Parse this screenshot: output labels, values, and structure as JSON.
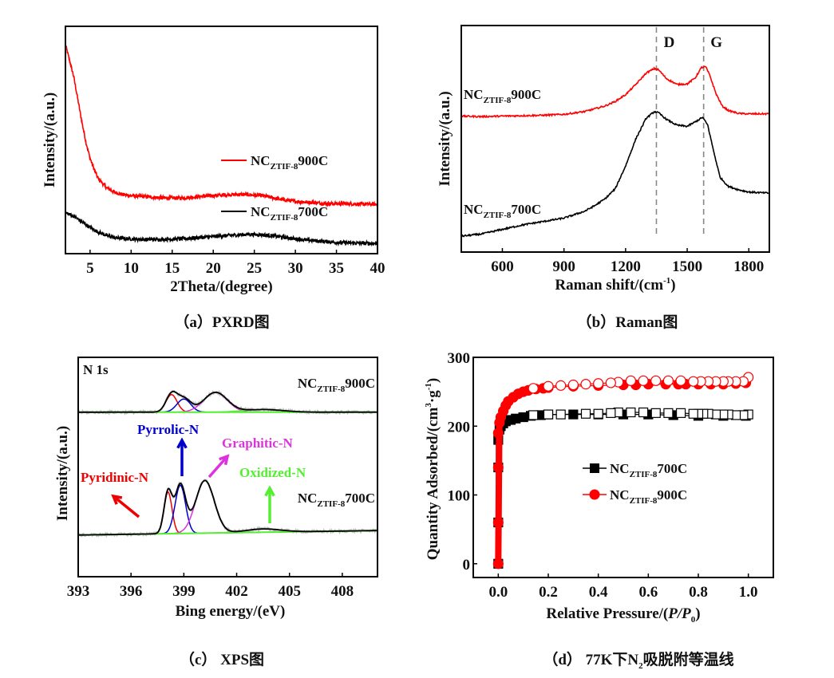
{
  "chart_data": [
    {
      "id": "a",
      "type": "line",
      "title": "",
      "caption": "（a）PXRD图",
      "xlabel": "2Theta/(degree)",
      "ylabel": "Intensity/(a.u.)",
      "xlim": [
        2,
        40
      ],
      "ylim": [
        0,
        100
      ],
      "xticks": [
        5,
        10,
        15,
        20,
        25,
        30,
        35,
        40
      ],
      "yticks_shown": false,
      "legend_position": "center-right",
      "series": [
        {
          "name": "NC_ZTIF-8 900C",
          "label_main": "NC",
          "label_sub": "ZTIF-8",
          "label_tail": "900C",
          "color": "#ff0000",
          "x": [
            2,
            2.5,
            3,
            3.5,
            4,
            4.5,
            5,
            5.5,
            6,
            7,
            8,
            9,
            10,
            12,
            14,
            16,
            18,
            20,
            22,
            24,
            26,
            28,
            30,
            32,
            34,
            36,
            38,
            40
          ],
          "y": [
            92,
            85,
            78,
            68,
            58,
            49,
            42,
            37,
            33,
            29,
            27,
            26,
            25.5,
            25,
            24.5,
            24.5,
            25,
            25.5,
            26,
            26,
            25.5,
            24,
            23,
            22.5,
            22,
            22,
            21.8,
            21.7
          ]
        },
        {
          "name": "NC_ZTIF-8 700C",
          "label_main": "NC",
          "label_sub": "ZTIF-8",
          "label_tail": "700C",
          "color": "#000000",
          "x": [
            2,
            3,
            4,
            5,
            6,
            7,
            8,
            10,
            12,
            14,
            16,
            18,
            20,
            22,
            24,
            26,
            28,
            30,
            32,
            34,
            36,
            38,
            40
          ],
          "y": [
            18,
            16.5,
            14,
            11.5,
            9.5,
            8,
            7,
            6.5,
            6.2,
            6.3,
            6.5,
            7,
            7.5,
            8,
            8.5,
            8.3,
            7.5,
            6.5,
            5.8,
            5.2,
            4.8,
            4.6,
            4.5
          ]
        }
      ]
    },
    {
      "id": "b",
      "type": "line",
      "title": "",
      "caption": "（b）Raman图",
      "xlabel": "Raman shift/(cm",
      "xlabel_sup": "-1",
      "xlabel_tail": ")",
      "ylabel": "Intensity/(a.u.)",
      "xlim": [
        400,
        1900
      ],
      "ylim": [
        0,
        100
      ],
      "xticks": [
        600,
        900,
        1200,
        1500,
        1800
      ],
      "yticks_shown": false,
      "reference_lines": [
        {
          "x": 1350,
          "label": "D"
        },
        {
          "x": 1580,
          "label": "G"
        }
      ],
      "series": [
        {
          "name": "NC_ZTIF-8 900C",
          "label_main": "NC",
          "label_sub": "ZTIF-8",
          "label_tail": "900C",
          "color": "#ff0000",
          "x": [
            400,
            500,
            600,
            700,
            800,
            900,
            1000,
            1100,
            1150,
            1200,
            1250,
            1300,
            1340,
            1360,
            1400,
            1450,
            1500,
            1540,
            1570,
            1590,
            1610,
            1640,
            1670,
            1700,
            1750,
            1800,
            1900
          ],
          "y": [
            60,
            59.8,
            60,
            60.2,
            60.4,
            60.8,
            62,
            64.5,
            66.5,
            69.5,
            74,
            79,
            81,
            80.5,
            76.5,
            74,
            74.2,
            77,
            81.5,
            81.8,
            78,
            70,
            64.5,
            62.5,
            61.2,
            61,
            61
          ]
        },
        {
          "name": "NC_ZTIF-8 700C",
          "label_main": "NC",
          "label_sub": "ZTIF-8",
          "label_tail": "700C",
          "color": "#000000",
          "x": [
            400,
            500,
            600,
            700,
            800,
            900,
            1000,
            1050,
            1100,
            1150,
            1200,
            1250,
            1300,
            1340,
            1360,
            1400,
            1450,
            1500,
            1540,
            1575,
            1600,
            1630,
            1660,
            1700,
            1750,
            1800,
            1900
          ],
          "y": [
            7,
            8,
            10,
            12,
            13.5,
            15,
            18,
            20.5,
            23.5,
            28,
            38,
            50,
            59,
            62,
            61.5,
            58.5,
            56,
            55.5,
            57.5,
            59.5,
            56,
            44,
            33,
            29,
            27.5,
            26.5,
            26
          ]
        }
      ]
    },
    {
      "id": "c",
      "type": "line",
      "title": "N 1s",
      "caption": "（c） XPS图",
      "xlabel": "Bing energy/(eV)",
      "ylabel": "Intensity/(a.u.)",
      "xlim": [
        393,
        410
      ],
      "ylim": [
        0,
        100
      ],
      "xticks": [
        393,
        396,
        399,
        402,
        405,
        408
      ],
      "yticks_shown": false,
      "annotations": [
        {
          "text": "Pyrrolic-N",
          "color": "#0000cc"
        },
        {
          "text": "Graphitic-N",
          "color": "#dd33dd"
        },
        {
          "text": "Pyridinic-N",
          "color": "#ee0000"
        },
        {
          "text": "Oxidized-N",
          "color": "#55ee33"
        }
      ],
      "peak_colors": {
        "envelope": "#000000",
        "pyridinic": "#ee0000",
        "pyrrolic": "#0000cc",
        "graphitic": "#dd33dd",
        "oxidized": "#55ee33",
        "raw": "#aaaaaa"
      },
      "series": [
        {
          "name": "NC_ZTIF-8 900C",
          "label_main": "NC",
          "label_sub": "ZTIF-8",
          "label_tail": "900C",
          "baseline": 75,
          "components": [
            {
              "type": "pyridinic",
              "center": 398.3,
              "height": 8,
              "width": 0.45
            },
            {
              "type": "pyrrolic",
              "center": 399.0,
              "height": 6,
              "width": 0.55
            },
            {
              "type": "graphitic",
              "center": 400.8,
              "height": 9,
              "width": 0.95
            },
            {
              "type": "oxidized",
              "center": 403.5,
              "height": 1.2,
              "width": 1.6
            }
          ]
        },
        {
          "name": "NC_ZTIF-8 700C",
          "label_main": "NC",
          "label_sub": "ZTIF-8",
          "label_tail": "700C",
          "baseline": 19,
          "baseline_slope": 0.12,
          "components": [
            {
              "type": "pyridinic",
              "center": 398.1,
              "height": 19,
              "width": 0.32
            },
            {
              "type": "pyrrolic",
              "center": 398.8,
              "height": 22,
              "width": 0.42
            },
            {
              "type": "graphitic",
              "center": 400.2,
              "height": 24,
              "width": 0.75
            },
            {
              "type": "oxidized",
              "center": 403.5,
              "height": 1.5,
              "width": 1.4
            }
          ]
        }
      ]
    },
    {
      "id": "d",
      "type": "scatter",
      "title": "",
      "caption_prefix": "（d） 77K下N",
      "caption_sub": "2",
      "caption_suffix": "吸脱附等温线",
      "xlabel_pre": "Relative Pressure/(",
      "xlabel_p": "P",
      "xlabel_slash": "/",
      "xlabel_p0": "P",
      "xlabel_sub": "0",
      "xlabel_tail": ")",
      "ylabel_pre": "Quantity Adsorbed/(cm",
      "ylabel_sup": "3",
      "ylabel_mid": "·g",
      "ylabel_sup2": "-1",
      "ylabel_tail": ")",
      "xlim": [
        -0.1,
        1.1
      ],
      "ylim": [
        -20,
        300
      ],
      "xticks": [
        0.0,
        0.2,
        0.4,
        0.6,
        0.8,
        1.0
      ],
      "xtick_labels": [
        "0.0",
        "0.2",
        "0.4",
        "0.6",
        "0.8",
        "1.0"
      ],
      "yticks": [
        0,
        100,
        200,
        300
      ],
      "legend_position": "center",
      "series": [
        {
          "name": "NC_ZTIF-8 700C",
          "label_main": "NC",
          "label_sub": "ZTIF-8",
          "label_tail": "700C",
          "color": "#000000",
          "marker": "square",
          "adsorption": {
            "x": [
              0.0,
              0.0,
              0.0,
              0.0,
              0.005,
              0.01,
              0.02,
              0.03,
              0.05,
              0.07,
              0.1,
              0.13,
              0.17,
              0.2,
              0.3,
              0.4,
              0.5,
              0.6,
              0.7,
              0.8,
              0.9,
              0.99
            ],
            "y": [
              0,
              60,
              140,
              180,
              195,
              200,
              204,
              207,
              209,
              211,
              213,
              215,
              216,
              217,
              217,
              217,
              217,
              217,
              216,
              215,
              215,
              215
            ]
          },
          "desorption": {
            "x": [
              1.0,
              0.98,
              0.95,
              0.92,
              0.9,
              0.87,
              0.84,
              0.82,
              0.8,
              0.78,
              0.73,
              0.68,
              0.63,
              0.58,
              0.53,
              0.48,
              0.45,
              0.4,
              0.35,
              0.25,
              0.2,
              0.14
            ],
            "y": [
              217,
              216,
              216,
              217,
              217,
              217,
              218,
              218,
              218,
              218,
              219,
              219,
              219,
              220,
              220,
              220,
              219,
              218,
              218,
              217,
              217,
              216
            ]
          }
        },
        {
          "name": "NC_ZTIF-8 900C",
          "label_main": "NC",
          "label_sub": "ZTIF-8",
          "label_tail": "900C",
          "color": "#ff0000",
          "marker": "circle",
          "adsorption": {
            "x": [
              0.0,
              0.0,
              0.0,
              0.0,
              0.005,
              0.01,
              0.02,
              0.03,
              0.04,
              0.06,
              0.08,
              0.1,
              0.12,
              0.15,
              0.18,
              0.2,
              0.3,
              0.4,
              0.5,
              0.55,
              0.6,
              0.67,
              0.72,
              0.75,
              0.8,
              0.85,
              0.9,
              0.95,
              0.99
            ],
            "y": [
              0,
              60,
              140,
              190,
              205,
              213,
              222,
              230,
              236,
              242,
              247,
              250,
              252,
              254,
              255,
              256,
              258,
              259,
              260,
              260,
              261,
              261,
              261,
              261,
              261,
              261,
              261,
              262,
              263
            ]
          },
          "desorption": {
            "x": [
              1.0,
              0.98,
              0.95,
              0.92,
              0.9,
              0.87,
              0.84,
              0.81,
              0.78,
              0.73,
              0.68,
              0.63,
              0.58,
              0.53,
              0.48,
              0.45,
              0.4,
              0.35,
              0.3,
              0.25,
              0.2,
              0.14
            ],
            "y": [
              271,
              265,
              265,
              265,
              265,
              265,
              265,
              265,
              265,
              266,
              266,
              266,
              266,
              266,
              264,
              263,
              262,
              261,
              260,
              259,
              258,
              255
            ]
          }
        }
      ]
    }
  ]
}
